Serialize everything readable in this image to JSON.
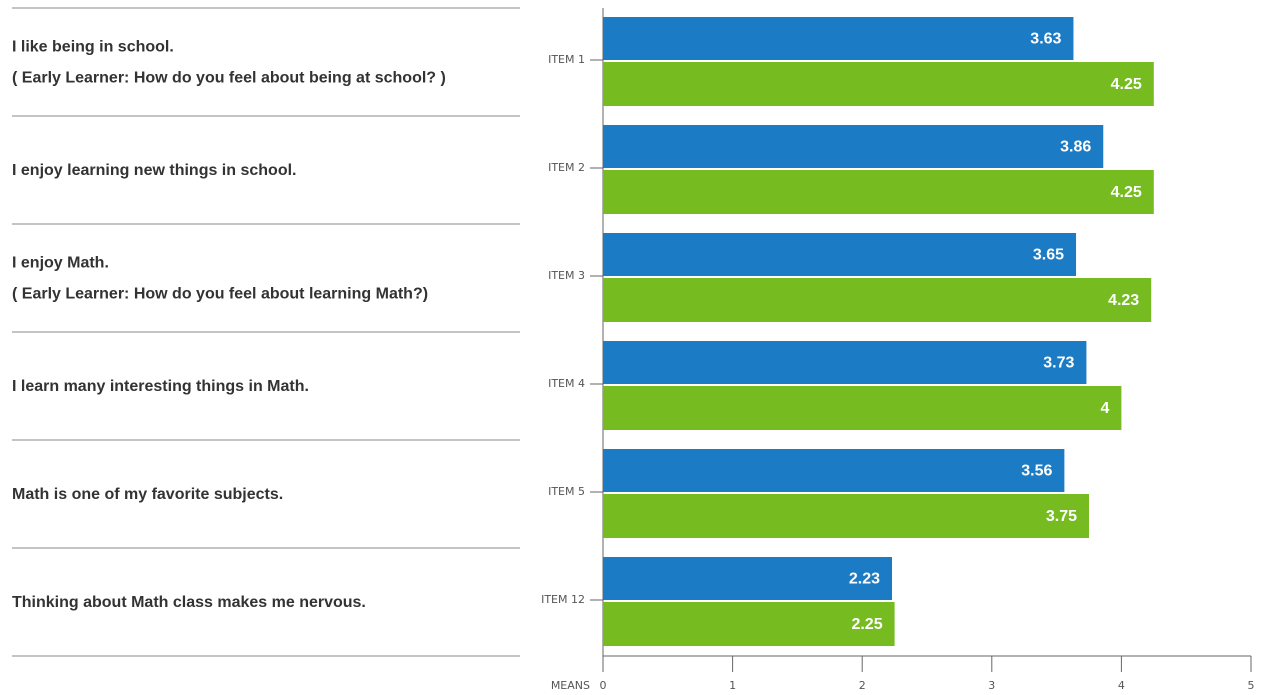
{
  "chart_data": {
    "type": "bar",
    "orientation": "horizontal",
    "statements": [
      {
        "lines": [
          "I like being in school.",
          "( Early Learner: How do you feel about being at school? )"
        ]
      },
      {
        "lines": [
          "I enjoy learning new things in school."
        ]
      },
      {
        "lines": [
          "I enjoy Math.",
          "( Early Learner: How do you feel about learning Math?)"
        ]
      },
      {
        "lines": [
          "I learn many interesting things in Math."
        ]
      },
      {
        "lines": [
          "Math is one of my favorite subjects."
        ]
      },
      {
        "lines": [
          "Thinking about Math class makes me nervous."
        ],
        "color": "#f7941d"
      }
    ],
    "categories": [
      "ITEM 1",
      "ITEM 2",
      "ITEM 3",
      "ITEM 4",
      "ITEM 5",
      "ITEM 12"
    ],
    "series": [
      {
        "color": "#1b7bc4",
        "values": [
          3.63,
          3.86,
          3.65,
          3.73,
          3.56,
          2.23
        ]
      },
      {
        "color": "#76bc21",
        "values": [
          4.25,
          4.25,
          4.23,
          4,
          3.75,
          2.25
        ]
      }
    ],
    "xlabel": "MEANS",
    "xlim": [
      0,
      5
    ],
    "xticks": [
      0,
      1,
      2,
      3,
      4,
      5
    ]
  }
}
